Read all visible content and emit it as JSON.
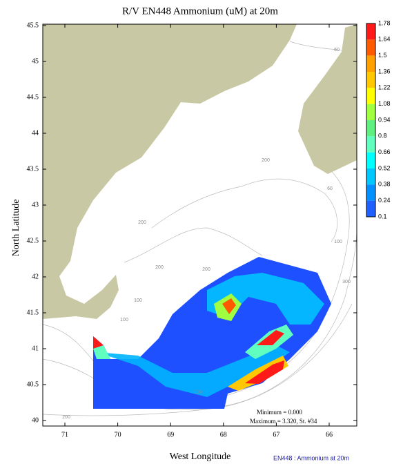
{
  "title": "R/V EN448 Ammonium (uM) at 20m",
  "x_axis": {
    "label": "West Longitude",
    "ticks": [
      71,
      70,
      69,
      68,
      67,
      66
    ]
  },
  "y_axis": {
    "label": "North Latitude",
    "ticks": [
      45.5,
      45,
      44.5,
      44,
      43.5,
      43,
      42.5,
      42,
      41.5,
      41,
      40.5,
      40
    ]
  },
  "colorbar": {
    "labels": [
      1.78,
      1.64,
      1.5,
      1.36,
      1.22,
      1.08,
      0.94,
      0.8,
      0.66,
      0.52,
      0.38,
      0.24,
      0.1
    ],
    "colors": [
      "#ff1a1a",
      "#ff5a00",
      "#ffa000",
      "#ffc800",
      "#ffff00",
      "#a0ff40",
      "#60f080",
      "#60ffc0",
      "#00ffff",
      "#00c8ff",
      "#0090ff",
      "#2060ff",
      "#0030ff"
    ]
  },
  "contour_labels": [
    60,
    200,
    60,
    200,
    100,
    200,
    200,
    300,
    100,
    100,
    100,
    200
  ],
  "annotations": [
    "Minimum = 0.000",
    "Maximum = 3.320, St. #34"
  ],
  "footer": "EN448 : Ammonium at 20m"
}
